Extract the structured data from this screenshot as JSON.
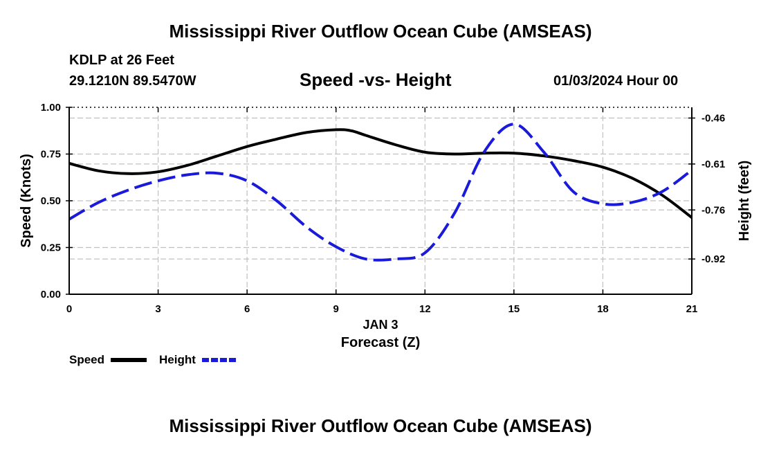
{
  "header": {
    "title": "Mississippi River Outflow Ocean Cube (AMSEAS)",
    "station": "KDLP at 26 Feet",
    "coords": "29.1210N  89.5470W",
    "date": "01/03/2024 Hour 00",
    "footer_title": "Mississippi River Outflow Ocean Cube (AMSEAS)"
  },
  "chart_data": {
    "type": "line",
    "title": "Speed -vs- Height",
    "xlabel": "Forecast (Z)",
    "xlabel_date": "JAN 3",
    "ylabel": "Speed (Knots)",
    "y2label": "Height (feet)",
    "xlim": [
      0,
      21
    ],
    "ylim": [
      0,
      1
    ],
    "y2lim": [
      -1.035,
      -0.425
    ],
    "x_ticks": [
      0,
      3,
      6,
      9,
      12,
      15,
      18,
      21
    ],
    "x_tick_labels": [
      "0",
      "3",
      "6",
      "9",
      "12",
      "15",
      "18",
      "21"
    ],
    "y_ticks": [
      0,
      0.25,
      0.5,
      0.75,
      1.0
    ],
    "y_tick_labels": [
      "0.00",
      "0.25",
      "0.50",
      "0.75",
      "1.00"
    ],
    "y2_ticks": [
      -0.92,
      -0.76,
      -0.61,
      -0.46
    ],
    "y2_tick_labels": [
      "-0.92",
      "-0.76",
      "-0.61",
      "-0.46"
    ],
    "grid": true,
    "series": [
      {
        "name": "Speed",
        "axis": "left",
        "color": "#000000",
        "dash": "solid",
        "x": [
          0,
          1,
          2,
          3,
          4,
          5,
          6,
          7,
          8,
          9,
          9.5,
          10,
          11,
          12,
          13,
          14,
          15,
          16,
          17,
          18,
          19,
          20,
          21
        ],
        "values": [
          0.7,
          0.66,
          0.645,
          0.655,
          0.69,
          0.74,
          0.79,
          0.83,
          0.865,
          0.88,
          0.875,
          0.85,
          0.8,
          0.76,
          0.75,
          0.755,
          0.755,
          0.74,
          0.715,
          0.68,
          0.62,
          0.53,
          0.41
        ]
      },
      {
        "name": "Height",
        "axis": "right",
        "color": "#1a1adb",
        "dash": "dashed",
        "x": [
          0,
          1,
          2,
          3,
          4,
          5,
          6,
          7,
          8,
          9,
          10,
          11,
          12,
          13,
          14,
          15,
          16,
          17,
          18,
          19,
          20,
          21
        ],
        "values": [
          -0.79,
          -0.735,
          -0.695,
          -0.665,
          -0.645,
          -0.64,
          -0.665,
          -0.73,
          -0.815,
          -0.88,
          -0.92,
          -0.92,
          -0.9,
          -0.77,
          -0.57,
          -0.48,
          -0.57,
          -0.7,
          -0.74,
          -0.735,
          -0.7,
          -0.63
        ]
      }
    ],
    "legend": [
      {
        "label": "Speed",
        "color": "#000000",
        "style": "solid"
      },
      {
        "label": "Height",
        "color": "#1a1adb",
        "style": "dashed"
      }
    ]
  }
}
